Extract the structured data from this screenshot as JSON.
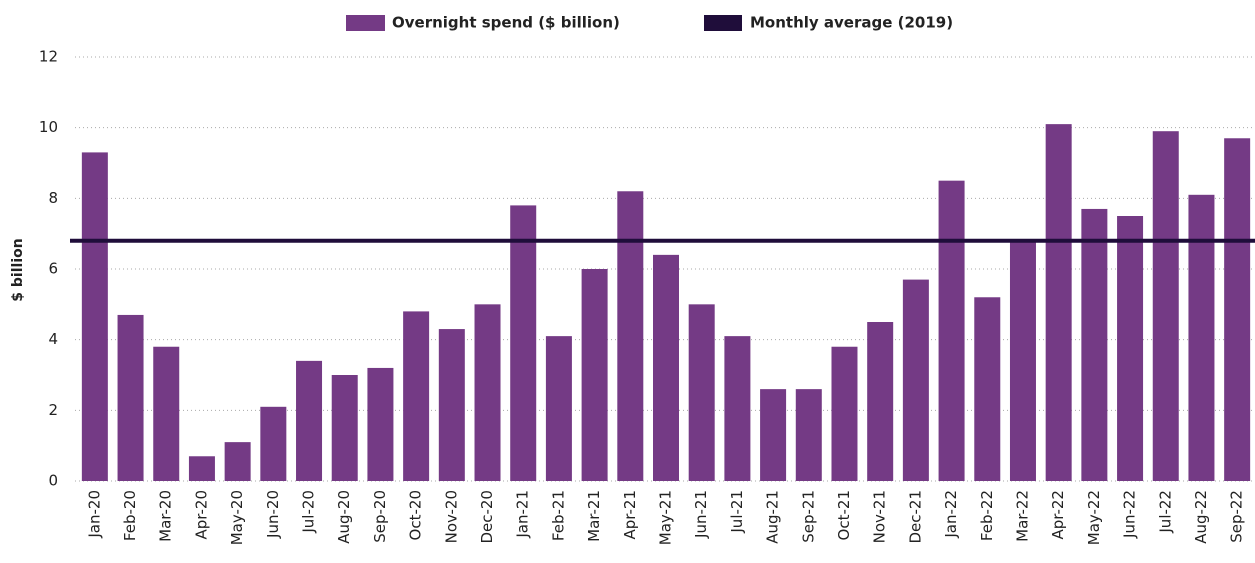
{
  "chart_data": {
    "type": "bar",
    "y_label": "$ billion",
    "categories": [
      "Jan-20",
      "Feb-20",
      "Mar-20",
      "Apr-20",
      "May-20",
      "Jun-20",
      "Jul-20",
      "Aug-20",
      "Sep-20",
      "Oct-20",
      "Nov-20",
      "Dec-20",
      "Jan-21",
      "Feb-21",
      "Mar-21",
      "Apr-21",
      "May-21",
      "Jun-21",
      "Jul-21",
      "Aug-21",
      "Sep-21",
      "Oct-21",
      "Nov-21",
      "Dec-21",
      "Jan-22",
      "Feb-22",
      "Mar-22",
      "Apr-22",
      "May-22",
      "Jun-22",
      "Jul-22",
      "Aug-22",
      "Sep-22"
    ],
    "series": [
      {
        "name": "Overnight spend ($ billion)",
        "color": "#743a85",
        "values": [
          9.3,
          4.7,
          3.8,
          0.7,
          1.1,
          2.1,
          3.4,
          3.0,
          3.2,
          4.8,
          4.3,
          5.0,
          7.8,
          4.1,
          6.0,
          8.2,
          6.4,
          5.0,
          4.1,
          2.6,
          2.6,
          3.8,
          4.5,
          5.7,
          8.5,
          5.2,
          6.8,
          10.1,
          7.7,
          7.5,
          9.9,
          8.1,
          9.7
        ]
      }
    ],
    "reference_line": {
      "name": "Monthly average (2019)",
      "color": "#1f0d3a",
      "value": 6.8
    },
    "ylim": [
      0,
      12
    ],
    "yticks": [
      0,
      2,
      4,
      6,
      8,
      10,
      12
    ],
    "grid": true
  }
}
